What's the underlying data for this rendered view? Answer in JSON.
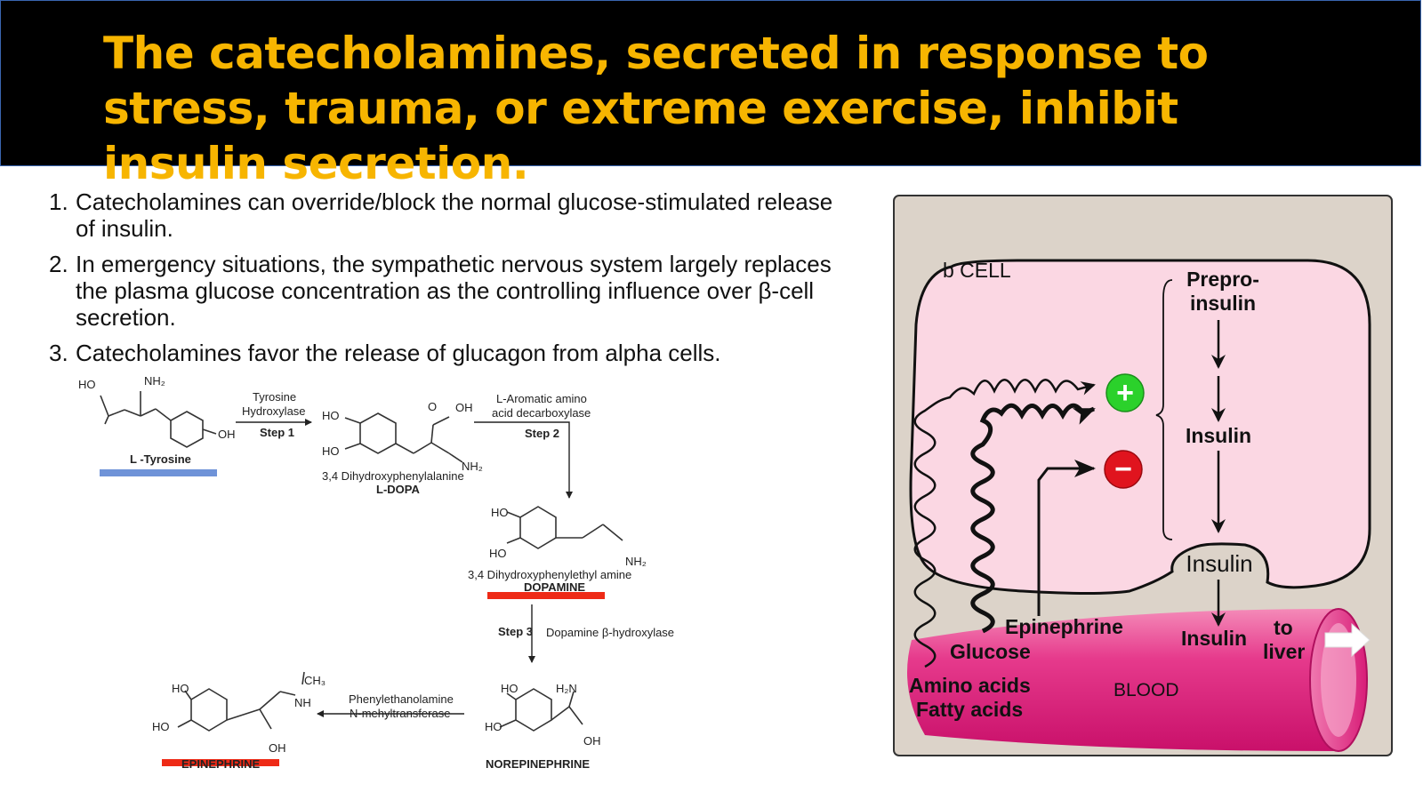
{
  "slide": {
    "title": "The catecholamines, secreted in response to stress, trauma, or extreme exercise, inhibit insulin secretion.",
    "points": [
      {
        "num": "1.",
        "text": "Catecholamines can override/block the normal glucose-stimulated release of insulin."
      },
      {
        "num": "2.",
        "text": "In emergency situations, the sympathetic nervous system largely replaces the plasma glucose concentration as the controlling influence over β-cell secretion."
      },
      {
        "num": "3.",
        "text": "Catecholamines favor the release of glucagon from alpha cells."
      }
    ]
  },
  "pathway": {
    "tyrosine": {
      "name": "L -Tyrosine",
      "ho": "HO",
      "nh2": "NH₂",
      "oh": "OH"
    },
    "step1": {
      "enzyme_line1": "Tyrosine",
      "enzyme_line2": "Hydroxylase",
      "label": "Step 1"
    },
    "ldopa": {
      "full": "3,4 Dihydroxyphenylalanine",
      "name": "L-DOPA",
      "ho": "HO",
      "oh": "OH",
      "o": "O",
      "nh2": "NH₂"
    },
    "step2": {
      "enzyme_line1": "L-Aromatic amino",
      "enzyme_line2": "acid decarboxylase",
      "label": "Step 2"
    },
    "dopamine": {
      "full": "3,4 Dihydroxyphenylethyl amine",
      "name": "DOPAMINE",
      "ho": "HO",
      "nh2": "NH₂"
    },
    "step3": {
      "label": "Step 3",
      "enzyme": "Dopamine β-hydroxylase"
    },
    "norepinephrine": {
      "name": "NOREPINEPHRINE",
      "ho": "HO",
      "h2n": "H₂N",
      "oh": "OH"
    },
    "step4": {
      "enzyme_line1": "Phenylethanolamine",
      "enzyme_line2": "N-mehyltransferase"
    },
    "epinephrine": {
      "name": "EPINEPHRINE",
      "ho": "HO",
      "ch3": "CH₃",
      "nh": "NH",
      "oh": "OH"
    },
    "underline_colors": {
      "tyrosine": "#6f93d8",
      "highlight": "#ee2a16"
    }
  },
  "beta_cell": {
    "cell_label": "b CELL",
    "prepro_line1": "Prepro-",
    "prepro_line2": "insulin",
    "insulin_mid": "Insulin",
    "insulin_granule": "Insulin",
    "plus_symbol": "+",
    "minus_symbol": "−",
    "epinephrine": "Epinephrine",
    "glucose": "Glucose",
    "amino_acids": "Amino acids",
    "fatty_acids": "Fatty acids",
    "blood": "BLOOD",
    "insulin_blood": "Insulin",
    "to": "to",
    "liver": "liver",
    "colors": {
      "cell_fill": "#fbd7e3",
      "panel_bg": "#dcd3c9",
      "vessel": "#e0267e",
      "plus": "#2bd12b",
      "minus": "#e0141e"
    }
  }
}
